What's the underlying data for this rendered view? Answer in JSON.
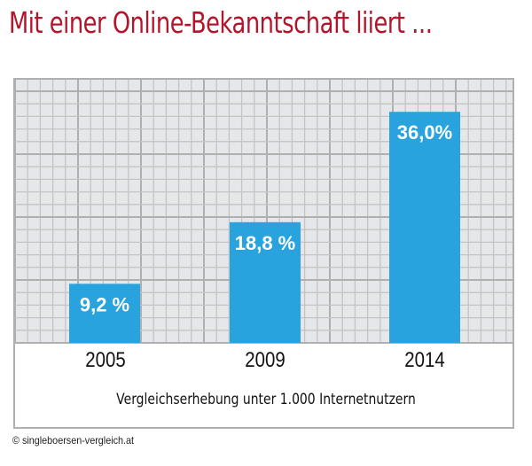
{
  "chart_data": {
    "type": "bar",
    "title": "Mit einer Online-Bekanntschaft liiert ...",
    "categories": [
      "2005",
      "2009",
      "2014"
    ],
    "values": [
      9.2,
      18.8,
      36.0
    ],
    "value_labels": [
      "9,2 %",
      "18,8 %",
      "36,0%"
    ],
    "unit": "%",
    "xlabel": "Vergleichserhebung unter 1.000 Internetnutzern",
    "ylabel": "",
    "ylim": [
      0,
      41
    ],
    "grid": true,
    "legend": "none",
    "colors": {
      "bar": "#29a3dd",
      "title": "#b5152b",
      "grid_bg": "#e6e7ea",
      "grid_line": "#c4c4c4",
      "grid_major": "#b0b0b0"
    }
  },
  "footer": {
    "copyright": "© singleboersen-vergleich.at"
  }
}
